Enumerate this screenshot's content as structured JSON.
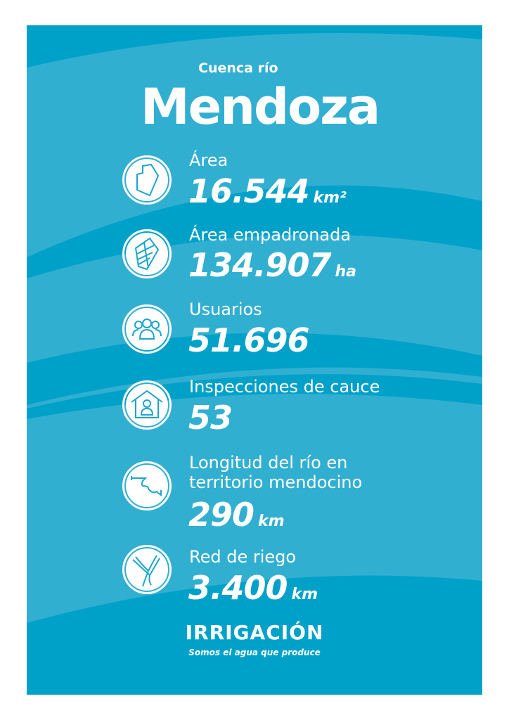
{
  "header": {
    "subtitle": "Cuenca río",
    "title": "Mendoza"
  },
  "colors": {
    "background": "#00a1c9",
    "band": "#31afd1",
    "text": "#ffffff"
  },
  "stats": [
    {
      "icon": "map-area-icon",
      "label": "Área",
      "value": "16.544",
      "unit": "km²"
    },
    {
      "icon": "parcels-icon",
      "label": "Área empadronada",
      "value": "134.907",
      "unit": "ha"
    },
    {
      "icon": "users-group-icon",
      "label": "Usuarios",
      "value": "51.696",
      "unit": ""
    },
    {
      "icon": "house-person-icon",
      "label": "Inspecciones de cauce",
      "value": "53",
      "unit": ""
    },
    {
      "icon": "river-icon",
      "label": "Longitud del río en territorio mendocino",
      "value": "290",
      "unit": "km"
    },
    {
      "icon": "irrigation-network-icon",
      "label": "Red de riego",
      "value": "3.400",
      "unit": "km"
    }
  ],
  "footer": {
    "logo": "IRRIGACIÓN",
    "tagline": "Somos el agua que produce"
  }
}
